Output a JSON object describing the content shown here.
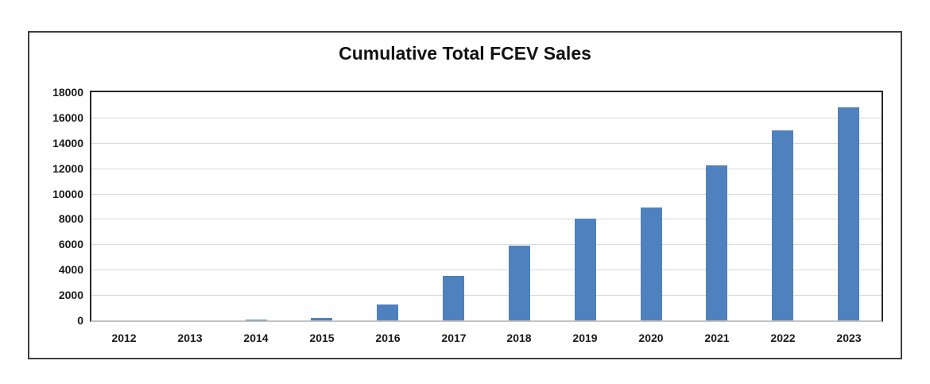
{
  "chart_data": {
    "type": "bar",
    "title": "Cumulative Total FCEV Sales",
    "categories": [
      "2012",
      "2013",
      "2014",
      "2015",
      "2016",
      "2017",
      "2018",
      "2019",
      "2020",
      "2021",
      "2022",
      "2023"
    ],
    "values": [
      0,
      0,
      50,
      200,
      1250,
      3500,
      5900,
      8000,
      8900,
      12250,
      15000,
      16800
    ],
    "xlabel": "",
    "ylabel": "",
    "ylim": [
      0,
      18000
    ],
    "yticks": [
      0,
      2000,
      4000,
      6000,
      8000,
      10000,
      12000,
      14000,
      16000,
      18000
    ],
    "grid": true,
    "legend": false,
    "colors": {
      "bar": "#4e81bd",
      "gridline": "#d9d9d9",
      "plot_border": "#262626",
      "baseline": "#c3c3c3",
      "figure_border": "#3f3f3f",
      "text": "#1a1a1a"
    }
  }
}
